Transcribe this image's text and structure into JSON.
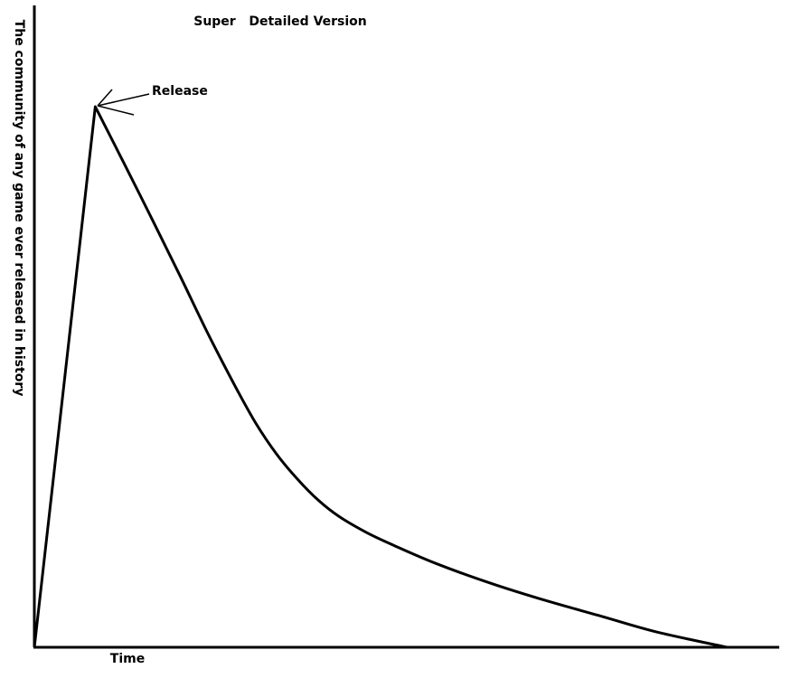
{
  "chart_data": {
    "type": "line",
    "title": "Super   Detailed Version",
    "xlabel": "Time",
    "ylabel": "The community of any game ever released in history",
    "xlim": [
      0,
      100
    ],
    "ylim": [
      0,
      100
    ],
    "grid": false,
    "legend": "none",
    "series": [
      {
        "x": [
          0,
          8.8,
          13,
          17,
          21,
          25,
          29,
          32,
          35,
          38,
          41,
          44,
          48,
          52,
          58,
          66,
          74,
          82,
          90,
          100
        ],
        "y": [
          0,
          100,
          89.4,
          79.2,
          68.8,
          58.2,
          48.3,
          41.4,
          35.7,
          31.1,
          27.2,
          24.2,
          21.2,
          18.8,
          15.5,
          11.8,
          8.6,
          5.7,
          2.8,
          0
        ],
        "color": "#000000"
      }
    ],
    "annotations": [
      {
        "text": "Release",
        "x": 8.8,
        "y": 100
      }
    ]
  }
}
